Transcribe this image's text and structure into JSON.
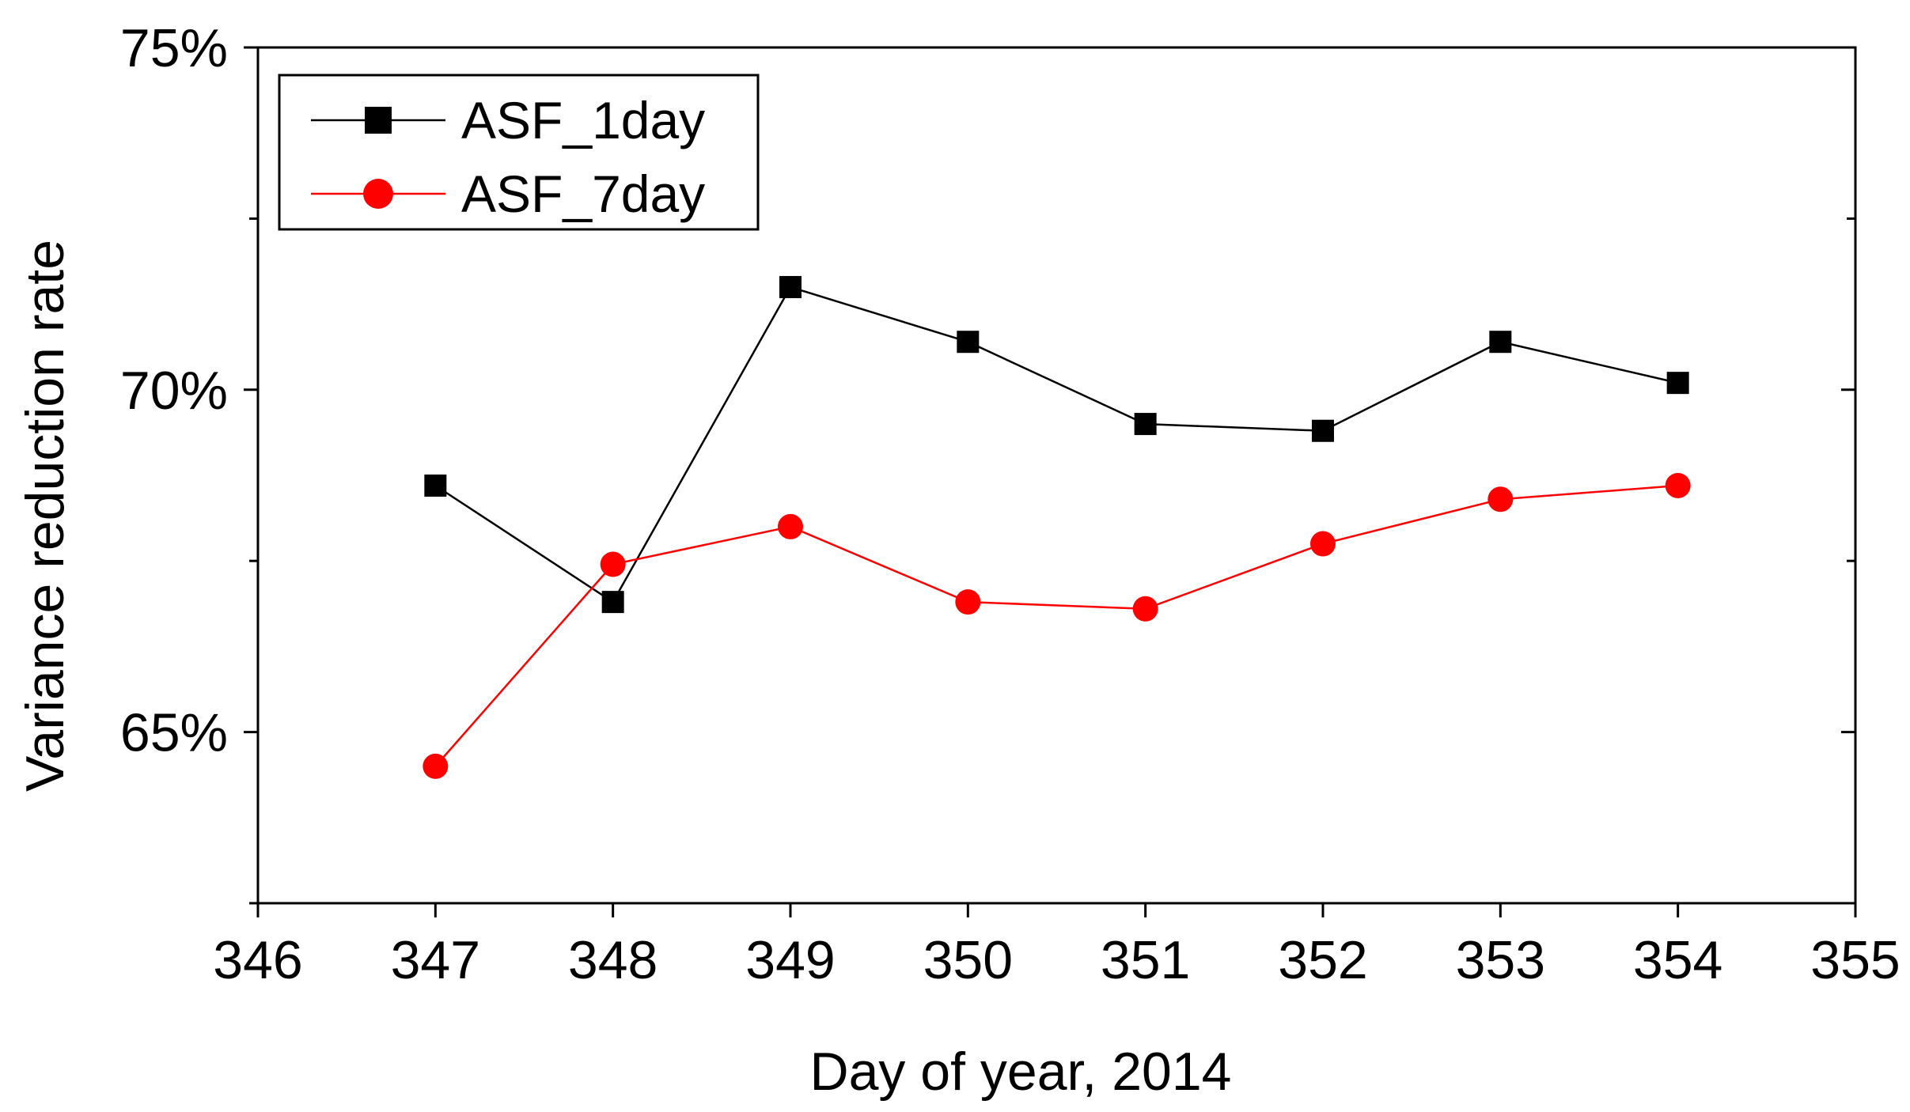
{
  "chart_data": {
    "type": "line",
    "title": "",
    "xlabel": "Day of year, 2014",
    "ylabel": "Variance reduction rate",
    "xlim": [
      346,
      355
    ],
    "ylim": [
      62.5,
      75
    ],
    "x_ticks": [
      346,
      347,
      348,
      349,
      350,
      351,
      352,
      353,
      354,
      355
    ],
    "x_tick_labels": [
      "346",
      "347",
      "348",
      "349",
      "350",
      "351",
      "352",
      "353",
      "354",
      "355"
    ],
    "y_ticks": [
      65,
      70,
      75
    ],
    "y_tick_labels": [
      "65%",
      "70%",
      "75%"
    ],
    "y_minor_ticks": [
      62.5,
      67.5,
      72.5
    ],
    "grid": false,
    "legend_position": "top-left",
    "x": [
      347,
      348,
      349,
      350,
      351,
      352,
      353,
      354
    ],
    "series": [
      {
        "name": "ASF_1day",
        "color": "#000000",
        "marker": "square",
        "values": [
          68.6,
          66.9,
          71.5,
          70.7,
          69.5,
          69.4,
          70.7,
          70.1
        ]
      },
      {
        "name": "ASF_7day",
        "color": "#ff0000",
        "marker": "circle",
        "values": [
          64.5,
          67.45,
          68.0,
          66.9,
          66.8,
          67.75,
          68.4,
          68.6
        ]
      }
    ]
  }
}
